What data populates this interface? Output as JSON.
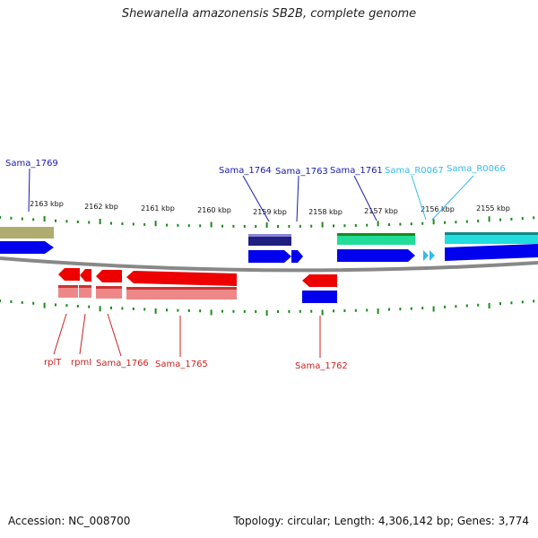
{
  "title": "Shewanella amazonensis SB2B, complete genome",
  "footer": {
    "accession": "Accession: NC_008700",
    "topology": "Topology: circular; Length: 4,306,142 bp; Genes: 3,774"
  },
  "colors": {
    "ruler_tick": "#1a8a1a",
    "backbone": "#8a8a8a",
    "top_label": "#1a1ab0",
    "rna_label": "#33bbee",
    "bottom_label": "#cc2222",
    "cds_fwd": "#0000ee",
    "cds_rev": "#ee0000",
    "cds_rev_light": "#ee8888",
    "gene_olive": "#b0ac70",
    "gene_navy": "#202080",
    "gene_mint": "#22dd99",
    "gene_cyan": "#22dddd",
    "rna_arrow": "#33bbee"
  },
  "ruler": [
    "2163 kbp",
    "2162 kbp",
    "2161 kbp",
    "2160 kbp",
    "2159 kbp",
    "2158 kbp",
    "2157 kbp",
    "2156 kbp",
    "2155 kbp"
  ],
  "top_labels": [
    {
      "text": "Sama_1769",
      "kind": "gene"
    },
    {
      "text": "Sama_1764",
      "kind": "gene"
    },
    {
      "text": "Sama_1763",
      "kind": "gene"
    },
    {
      "text": "Sama_1761",
      "kind": "gene"
    },
    {
      "text": "Sama_R0067",
      "kind": "rna"
    },
    {
      "text": "Sama_R0066",
      "kind": "rna"
    }
  ],
  "bottom_labels": [
    "rplT",
    "rpmI",
    "Sama_1766",
    "Sama_1765",
    "Sama_1762"
  ]
}
